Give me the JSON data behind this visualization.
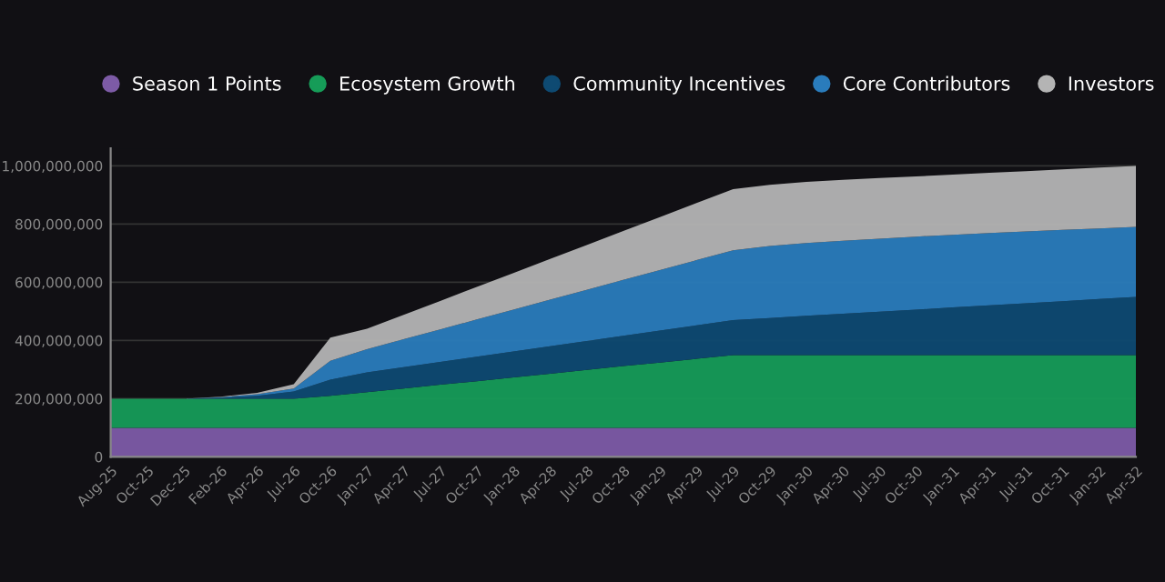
{
  "chart_data": {
    "type": "area",
    "stacked": true,
    "legend": "top",
    "grid": "y",
    "categories": [
      "Aug-25",
      "Oct-25",
      "Dec-25",
      "Feb-26",
      "Apr-26",
      "Jul-26",
      "Oct-26",
      "Jan-27",
      "Apr-27",
      "Jul-27",
      "Oct-27",
      "Jan-28",
      "Apr-28",
      "Jul-28",
      "Oct-28",
      "Jan-29",
      "Apr-29",
      "Jul-29",
      "Oct-29",
      "Jan-30",
      "Apr-30",
      "Jul-30",
      "Oct-30",
      "Jan-31",
      "Apr-31",
      "Jul-31",
      "Oct-31",
      "Jan-32",
      "Apr-32"
    ],
    "ylim": [
      0,
      1060000000
    ],
    "yticks": [
      {
        "value": 0,
        "label": "0"
      },
      {
        "value": 200000000,
        "label": "200,000,000"
      },
      {
        "value": 400000000,
        "label": "400,000,000"
      },
      {
        "value": 600000000,
        "label": "600,000,000"
      },
      {
        "value": 800000000,
        "label": "800,000,000"
      },
      {
        "value": 1000000000,
        "label": "1,000,000,000"
      }
    ],
    "series": [
      {
        "name": "Season 1 Points",
        "color": "#7d5ba6",
        "values": [
          100000000,
          100000000,
          100000000,
          100000000,
          100000000,
          100000000,
          100000000,
          100000000,
          100000000,
          100000000,
          100000000,
          100000000,
          100000000,
          100000000,
          100000000,
          100000000,
          100000000,
          100000000,
          100000000,
          100000000,
          100000000,
          100000000,
          100000000,
          100000000,
          100000000,
          100000000,
          100000000,
          100000000,
          100000000
        ]
      },
      {
        "name": "Ecosystem Growth",
        "color": "#169c58",
        "values": [
          100000000,
          100000000,
          100000000,
          100000000,
          100000000,
          100000000,
          110000000,
          122000000,
          135000000,
          148000000,
          160000000,
          173000000,
          186000000,
          199000000,
          212000000,
          224000000,
          237000000,
          250000000,
          250000000,
          250000000,
          250000000,
          250000000,
          250000000,
          250000000,
          250000000,
          250000000,
          250000000,
          250000000,
          250000000
        ]
      },
      {
        "name": "Community Incentives",
        "color": "#0e4a72",
        "values": [
          0,
          0,
          0,
          3000000,
          10000000,
          25000000,
          55000000,
          68000000,
          73000000,
          78000000,
          84000000,
          89000000,
          94000000,
          99000000,
          104000000,
          110000000,
          115000000,
          120000000,
          127000000,
          135000000,
          142000000,
          149000000,
          156000000,
          164000000,
          171000000,
          178000000,
          185000000,
          193000000,
          200000000
        ]
      },
      {
        "name": "Core Contributors",
        "color": "#2a7cbc",
        "values": [
          0,
          0,
          0,
          2000000,
          5000000,
          10000000,
          65000000,
          80000000,
          96000000,
          112000000,
          128000000,
          144000000,
          160000000,
          176000000,
          192000000,
          208000000,
          224000000,
          240000000,
          248000000,
          250000000,
          251000000,
          251000000,
          251000000,
          249000000,
          248000000,
          247000000,
          245000000,
          242000000,
          240000000
        ]
      },
      {
        "name": "Investors",
        "color": "#b4b4b4",
        "values": [
          0,
          0,
          0,
          2000000,
          5000000,
          15000000,
          80000000,
          70000000,
          84000000,
          98000000,
          112000000,
          126000000,
          140000000,
          154000000,
          168000000,
          182000000,
          196000000,
          210000000,
          210000000,
          210000000,
          209000000,
          208000000,
          207000000,
          207000000,
          207000000,
          207000000,
          208000000,
          209000000,
          210000000
        ]
      }
    ]
  }
}
